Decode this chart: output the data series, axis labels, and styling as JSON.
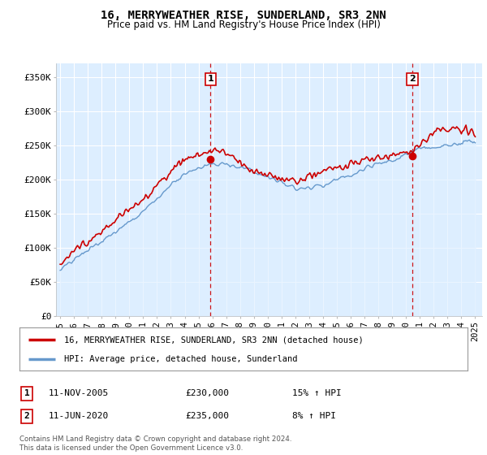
{
  "title": "16, MERRYWEATHER RISE, SUNDERLAND, SR3 2NN",
  "subtitle": "Price paid vs. HM Land Registry's House Price Index (HPI)",
  "legend_line1": "16, MERRYWEATHER RISE, SUNDERLAND, SR3 2NN (detached house)",
  "legend_line2": "HPI: Average price, detached house, Sunderland",
  "transaction1_label": "1",
  "transaction1_date": "11-NOV-2005",
  "transaction1_price": "£230,000",
  "transaction1_hpi": "15% ↑ HPI",
  "transaction2_label": "2",
  "transaction2_date": "11-JUN-2020",
  "transaction2_price": "£235,000",
  "transaction2_hpi": "8% ↑ HPI",
  "footer": "Contains HM Land Registry data © Crown copyright and database right 2024.\nThis data is licensed under the Open Government Licence v3.0.",
  "background_color": "#ffffff",
  "plot_background": "#ddeeff",
  "grid_color": "#ffffff",
  "hpi_line_color": "#6699cc",
  "hpi_fill_color": "#ddeeff",
  "price_line_color": "#cc0000",
  "marker1_x": 2005.87,
  "marker1_y": 230000,
  "marker2_x": 2020.45,
  "marker2_y": 235000,
  "vline_color": "#cc0000",
  "ylim": [
    0,
    370000
  ],
  "xlim_start": 1994.7,
  "xlim_end": 2025.5,
  "yticks": [
    0,
    50000,
    100000,
    150000,
    200000,
    250000,
    300000,
    350000
  ],
  "ytick_labels": [
    "£0",
    "£50K",
    "£100K",
    "£150K",
    "£200K",
    "£250K",
    "£300K",
    "£350K"
  ],
  "xticks": [
    1995,
    1996,
    1997,
    1998,
    1999,
    2000,
    2001,
    2002,
    2003,
    2004,
    2005,
    2006,
    2007,
    2008,
    2009,
    2010,
    2011,
    2012,
    2013,
    2014,
    2015,
    2016,
    2017,
    2018,
    2019,
    2020,
    2021,
    2022,
    2023,
    2024,
    2025
  ]
}
